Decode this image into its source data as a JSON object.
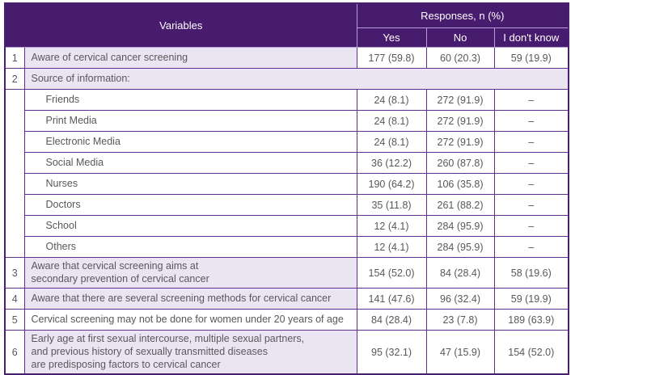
{
  "colors": {
    "header_bg": "#471b6d",
    "row_tint": "#ebe5f3",
    "border": "#5e2f8f",
    "header_divider": "#b4a0d2",
    "text": "#58585b",
    "header_text": "#ffffff"
  },
  "chart_data": {
    "type": "table",
    "header": {
      "variables_label": "Variables",
      "responses_label": "Responses, n (%)",
      "response_columns": [
        "Yes",
        "No",
        "I don't know"
      ]
    },
    "rows": [
      {
        "num": "1",
        "label": "Aware of cervical cancer screening",
        "yes": "177 (59.8)",
        "no": "60 (20.3)",
        "dont_know": "59 (19.9)"
      },
      {
        "num": "2",
        "label": "Source of information:"
      },
      {
        "label": "Friends",
        "yes": "24 (8.1)",
        "no": "272 (91.9)",
        "dont_know": "–"
      },
      {
        "label": "Print Media",
        "yes": "24 (8.1)",
        "no": "272 (91.9)",
        "dont_know": "–"
      },
      {
        "label": "Electronic Media",
        "yes": "24 (8.1)",
        "no": "272 (91.9)",
        "dont_know": "–"
      },
      {
        "label": "Social Media",
        "yes": "36 (12.2)",
        "no": "260 (87.8)",
        "dont_know": "–"
      },
      {
        "label": "Nurses",
        "yes": "190 (64.2)",
        "no": "106 (35.8)",
        "dont_know": "–"
      },
      {
        "label": "Doctors",
        "yes": "35 (11.8)",
        "no": "261 (88.2)",
        "dont_know": "–"
      },
      {
        "label": "School",
        "yes": "12 (4.1)",
        "no": "284 (95.9)",
        "dont_know": "–"
      },
      {
        "label": "Others",
        "yes": "12 (4.1)",
        "no": "284 (95.9)",
        "dont_know": "–"
      },
      {
        "num": "3",
        "label": "Aware that cervical screening aims at\nsecondary prevention of cervical cancer",
        "yes": "154 (52.0)",
        "no": "84 (28.4)",
        "dont_know": "58 (19.6)"
      },
      {
        "num": "4",
        "label": "Aware that there are several screening methods for cervical cancer",
        "yes": "141 (47.6)",
        "no": "96 (32.4)",
        "dont_know": "59 (19.9)"
      },
      {
        "num": "5",
        "label": "Cervical screening may not be done for women under 20 years of age",
        "yes": "84 (28.4)",
        "no": "23 (7.8)",
        "dont_know": "189 (63.9)"
      },
      {
        "num": "6",
        "label": "Early age at first sexual intercourse, multiple sexual partners,\nand previous history of sexually transmitted diseases\nare predisposing factors to cervical cancer",
        "yes": "95 (32.1)",
        "no": "47 (15.9)",
        "dont_know": "154 (52.0)"
      }
    ]
  }
}
